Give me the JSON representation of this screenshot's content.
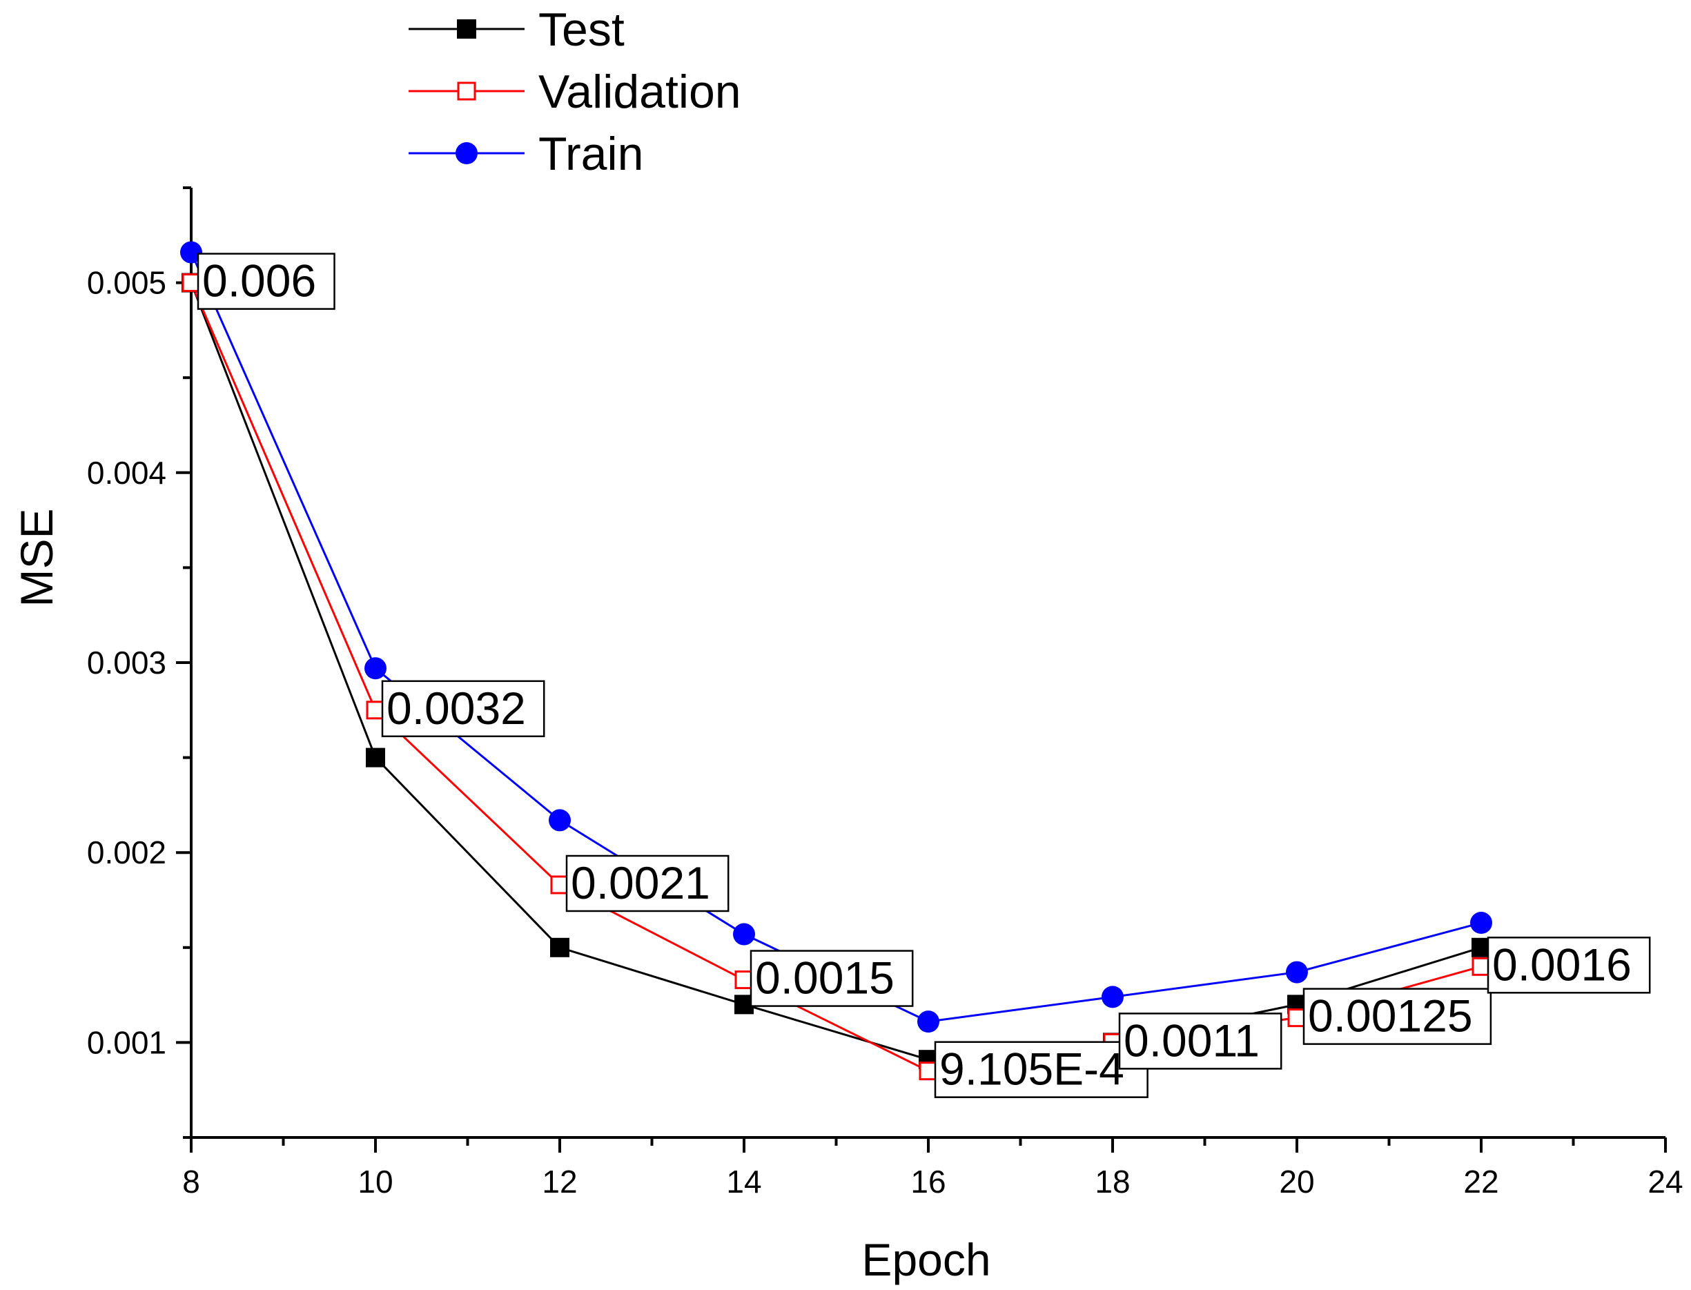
{
  "chart_data": {
    "type": "line",
    "title": "",
    "xlabel": "Epoch",
    "ylabel": "MSE",
    "xlim": [
      8,
      24
    ],
    "ylim": [
      0.0005,
      0.0055
    ],
    "x_ticks": [
      8,
      10,
      12,
      14,
      16,
      18,
      20,
      22,
      24
    ],
    "x_tick_labels": [
      "8",
      "10",
      "12",
      "14",
      "16",
      "18",
      "20",
      "22",
      "24"
    ],
    "y_ticks": [
      0.001,
      0.002,
      0.003,
      0.004,
      0.005
    ],
    "y_tick_labels": [
      "0.001",
      "0.002",
      "0.003",
      "0.004",
      "0.005"
    ],
    "x": [
      8,
      10,
      12,
      14,
      16,
      18,
      20,
      22
    ],
    "series": [
      {
        "name": "Test",
        "color": "#000000",
        "marker": "filled-square",
        "values": [
          0.005,
          0.0025,
          0.0015,
          0.0012,
          0.00091,
          0.001,
          0.0012,
          0.0015
        ]
      },
      {
        "name": "Validation",
        "color": "#ff0000",
        "marker": "open-square",
        "values": [
          0.005,
          0.00275,
          0.00183,
          0.00133,
          0.00085,
          0.001,
          0.00113,
          0.0014
        ]
      },
      {
        "name": "Train",
        "color": "#0000ff",
        "marker": "filled-circle",
        "values": [
          0.00516,
          0.00297,
          0.00217,
          0.00157,
          0.00111,
          0.00124,
          0.00137,
          0.00163
        ]
      }
    ],
    "annotations": [
      {
        "x": 8,
        "y": 0.005,
        "text": "0.006"
      },
      {
        "x": 10,
        "y": 0.00275,
        "text": "0.0032"
      },
      {
        "x": 12,
        "y": 0.00183,
        "text": "0.0021"
      },
      {
        "x": 14,
        "y": 0.00133,
        "text": "0.0015"
      },
      {
        "x": 16,
        "y": 0.00085,
        "text": "9.105E-4"
      },
      {
        "x": 18,
        "y": 0.001,
        "text": "0.0011"
      },
      {
        "x": 20,
        "y": 0.00113,
        "text": "0.00125"
      },
      {
        "x": 22,
        "y": 0.0014,
        "text": "0.0016"
      }
    ],
    "legend_position": "top-center",
    "grid": false
  }
}
